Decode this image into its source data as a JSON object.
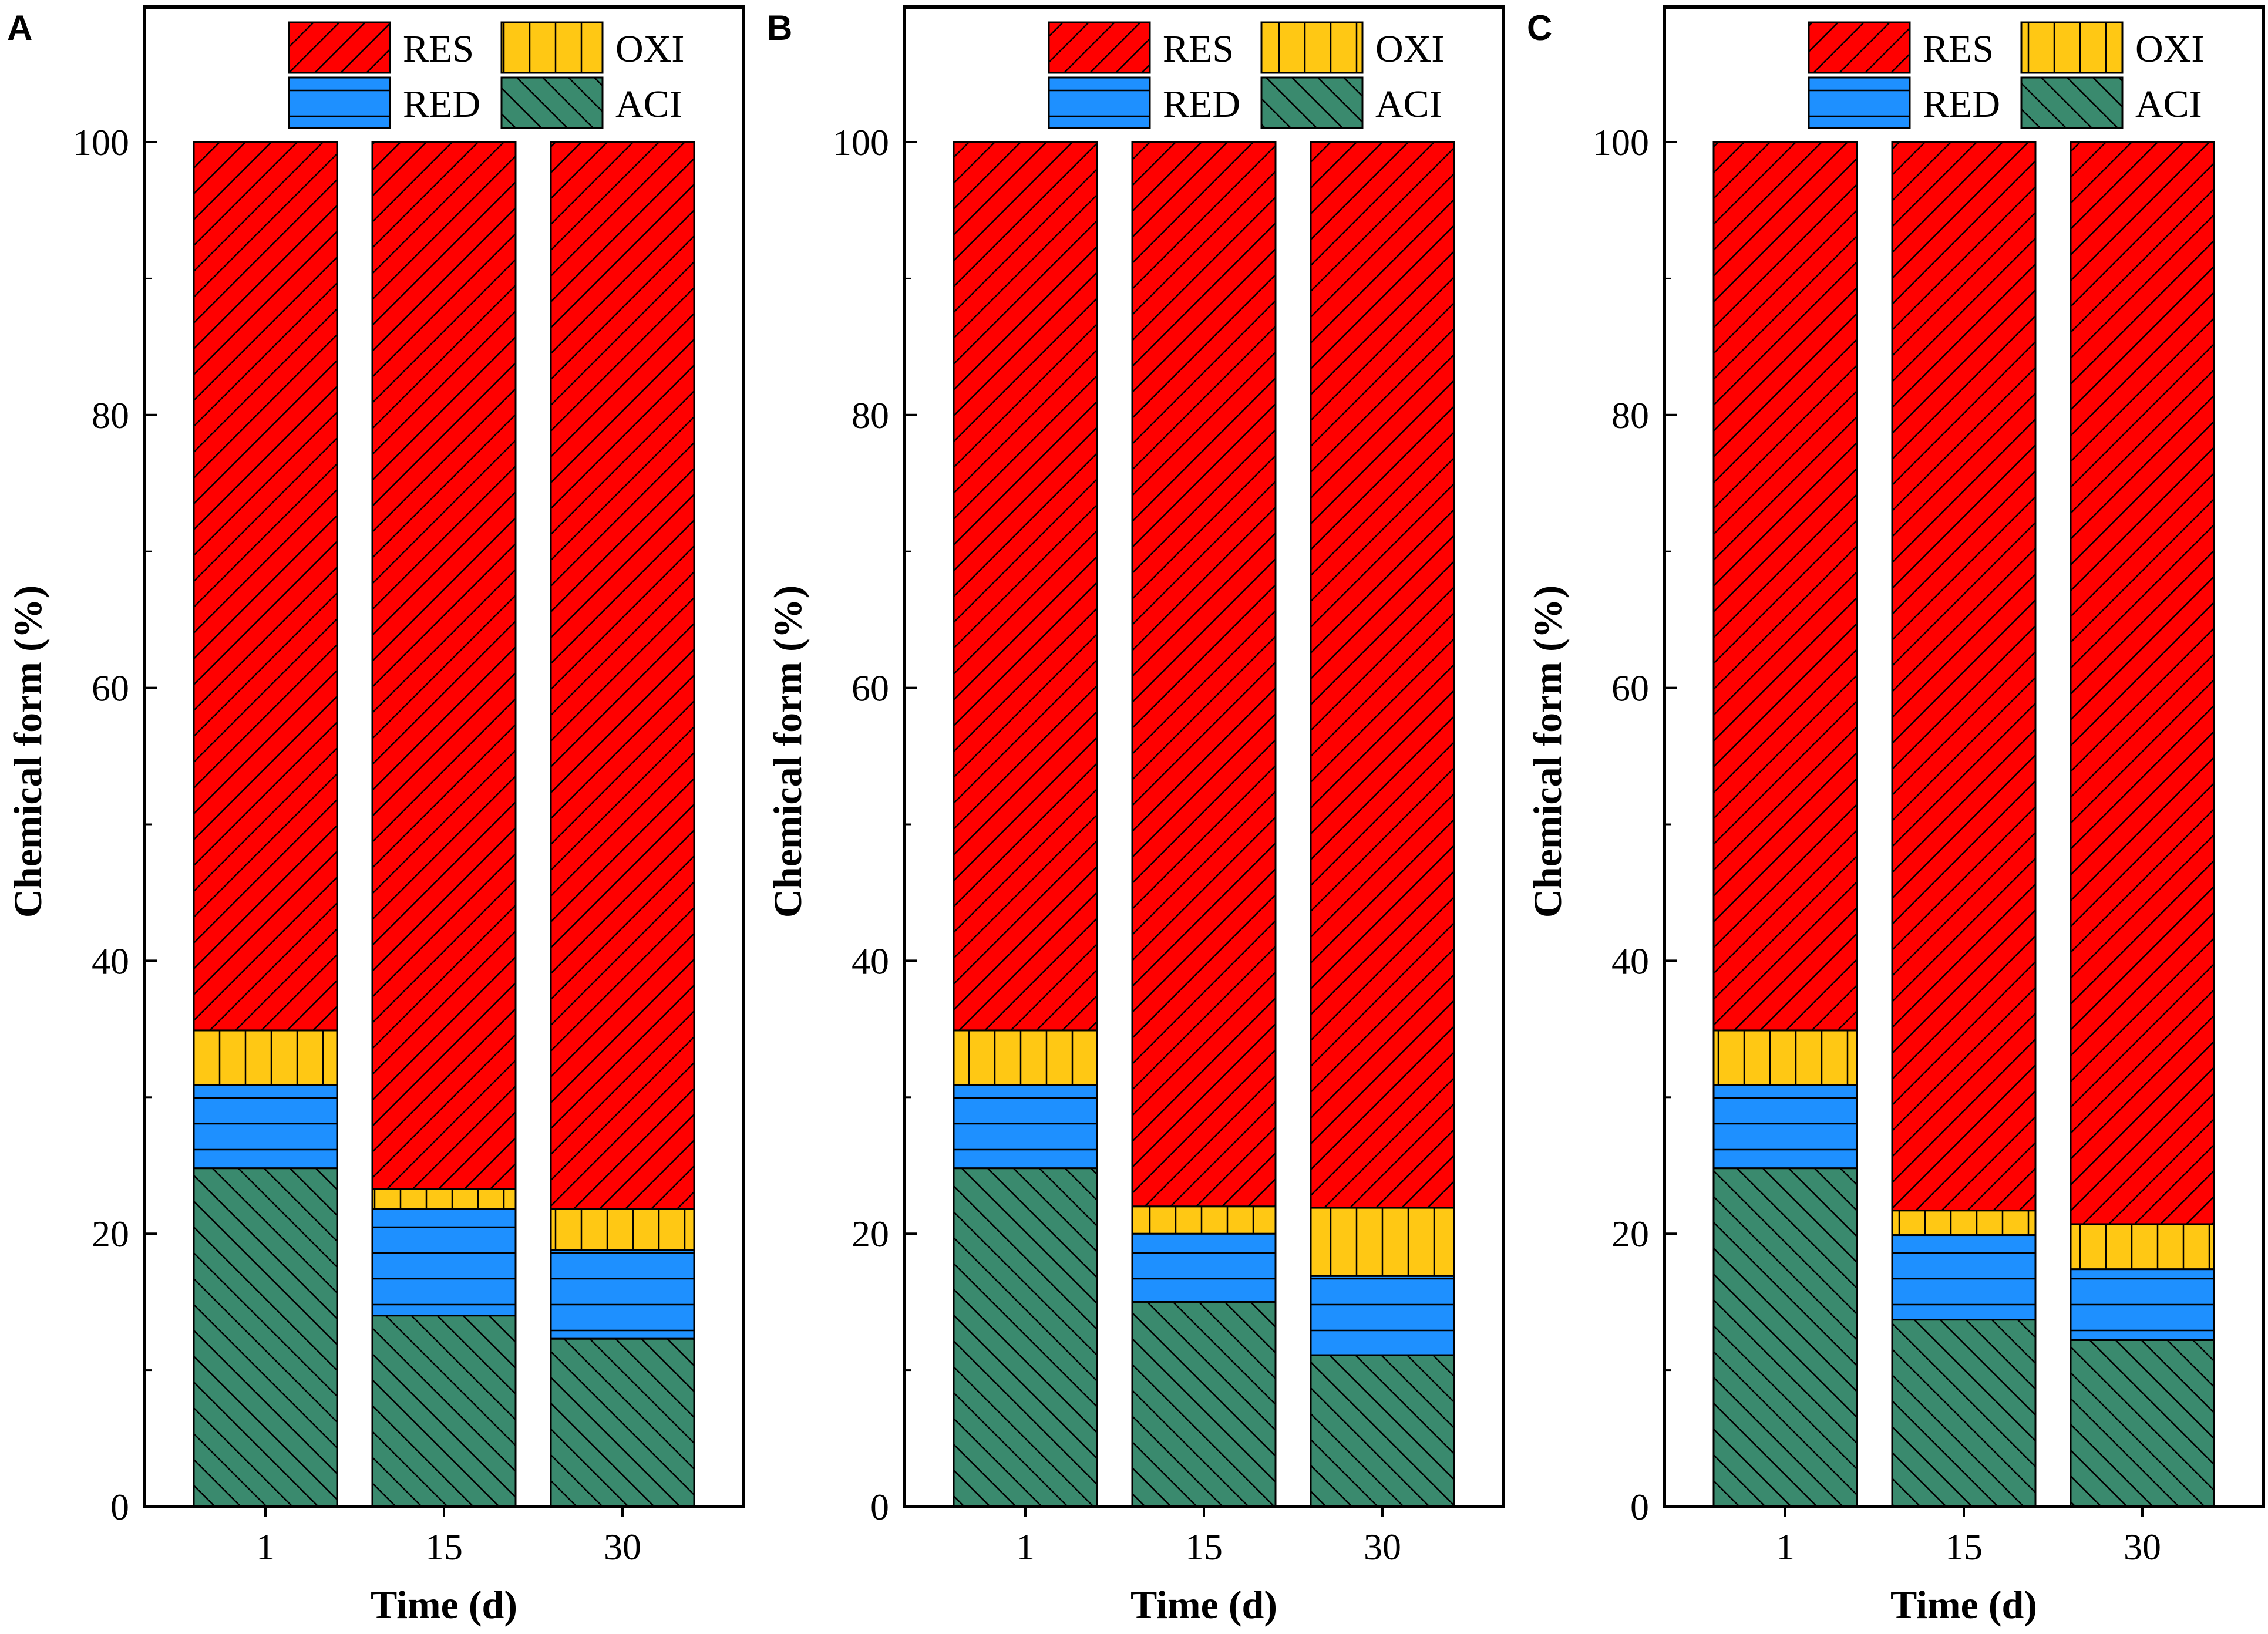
{
  "chart_data": [
    {
      "panel": "A",
      "type": "bar",
      "stacked": true,
      "title": "",
      "xlabel": "Time (d)",
      "ylabel": "Chemical form (%)",
      "ylim": [
        0,
        110
      ],
      "yticks": [
        0,
        20,
        40,
        60,
        80,
        100
      ],
      "grid": false,
      "legend_position": "top",
      "categories": [
        "1",
        "15",
        "30"
      ],
      "series": [
        {
          "name": "ACI",
          "color": "#3A8A6E",
          "pattern": "backslash",
          "values": [
            24.8,
            14.0,
            12.3
          ]
        },
        {
          "name": "RED",
          "color": "#1E90FF",
          "pattern": "horizontal",
          "values": [
            6.1,
            7.8,
            6.5
          ]
        },
        {
          "name": "OXI",
          "color": "#FFC814",
          "pattern": "vertical",
          "values": [
            4.0,
            1.5,
            3.0
          ]
        },
        {
          "name": "RES",
          "color": "#FF0000",
          "pattern": "slash",
          "values": [
            65.1,
            76.7,
            78.2
          ]
        }
      ]
    },
    {
      "panel": "B",
      "type": "bar",
      "stacked": true,
      "title": "",
      "xlabel": "Time (d)",
      "ylabel": "Chemical form (%)",
      "ylim": [
        0,
        110
      ],
      "yticks": [
        0,
        20,
        40,
        60,
        80,
        100
      ],
      "grid": false,
      "legend_position": "top",
      "categories": [
        "1",
        "15",
        "30"
      ],
      "series": [
        {
          "name": "ACI",
          "color": "#3A8A6E",
          "pattern": "backslash",
          "values": [
            24.8,
            15.0,
            11.1
          ]
        },
        {
          "name": "RED",
          "color": "#1E90FF",
          "pattern": "horizontal",
          "values": [
            6.1,
            5.0,
            5.8
          ]
        },
        {
          "name": "OXI",
          "color": "#FFC814",
          "pattern": "vertical",
          "values": [
            4.0,
            2.0,
            5.0
          ]
        },
        {
          "name": "RES",
          "color": "#FF0000",
          "pattern": "slash",
          "values": [
            65.1,
            78.0,
            78.1
          ]
        }
      ]
    },
    {
      "panel": "C",
      "type": "bar",
      "stacked": true,
      "title": "",
      "xlabel": "Time (d)",
      "ylabel": "Chemical form (%)",
      "ylim": [
        0,
        110
      ],
      "yticks": [
        0,
        20,
        40,
        60,
        80,
        100
      ],
      "grid": false,
      "legend_position": "top",
      "categories": [
        "1",
        "15",
        "30"
      ],
      "series": [
        {
          "name": "ACI",
          "color": "#3A8A6E",
          "pattern": "backslash",
          "values": [
            24.8,
            13.7,
            12.2
          ]
        },
        {
          "name": "RED",
          "color": "#1E90FF",
          "pattern": "horizontal",
          "values": [
            6.1,
            6.2,
            5.2
          ]
        },
        {
          "name": "OXI",
          "color": "#FFC814",
          "pattern": "vertical",
          "values": [
            4.0,
            1.8,
            3.3
          ]
        },
        {
          "name": "RES",
          "color": "#FF0000",
          "pattern": "slash",
          "values": [
            65.1,
            78.3,
            79.3
          ]
        }
      ]
    }
  ],
  "legend_order": [
    "RES",
    "OXI",
    "RED",
    "ACI"
  ]
}
